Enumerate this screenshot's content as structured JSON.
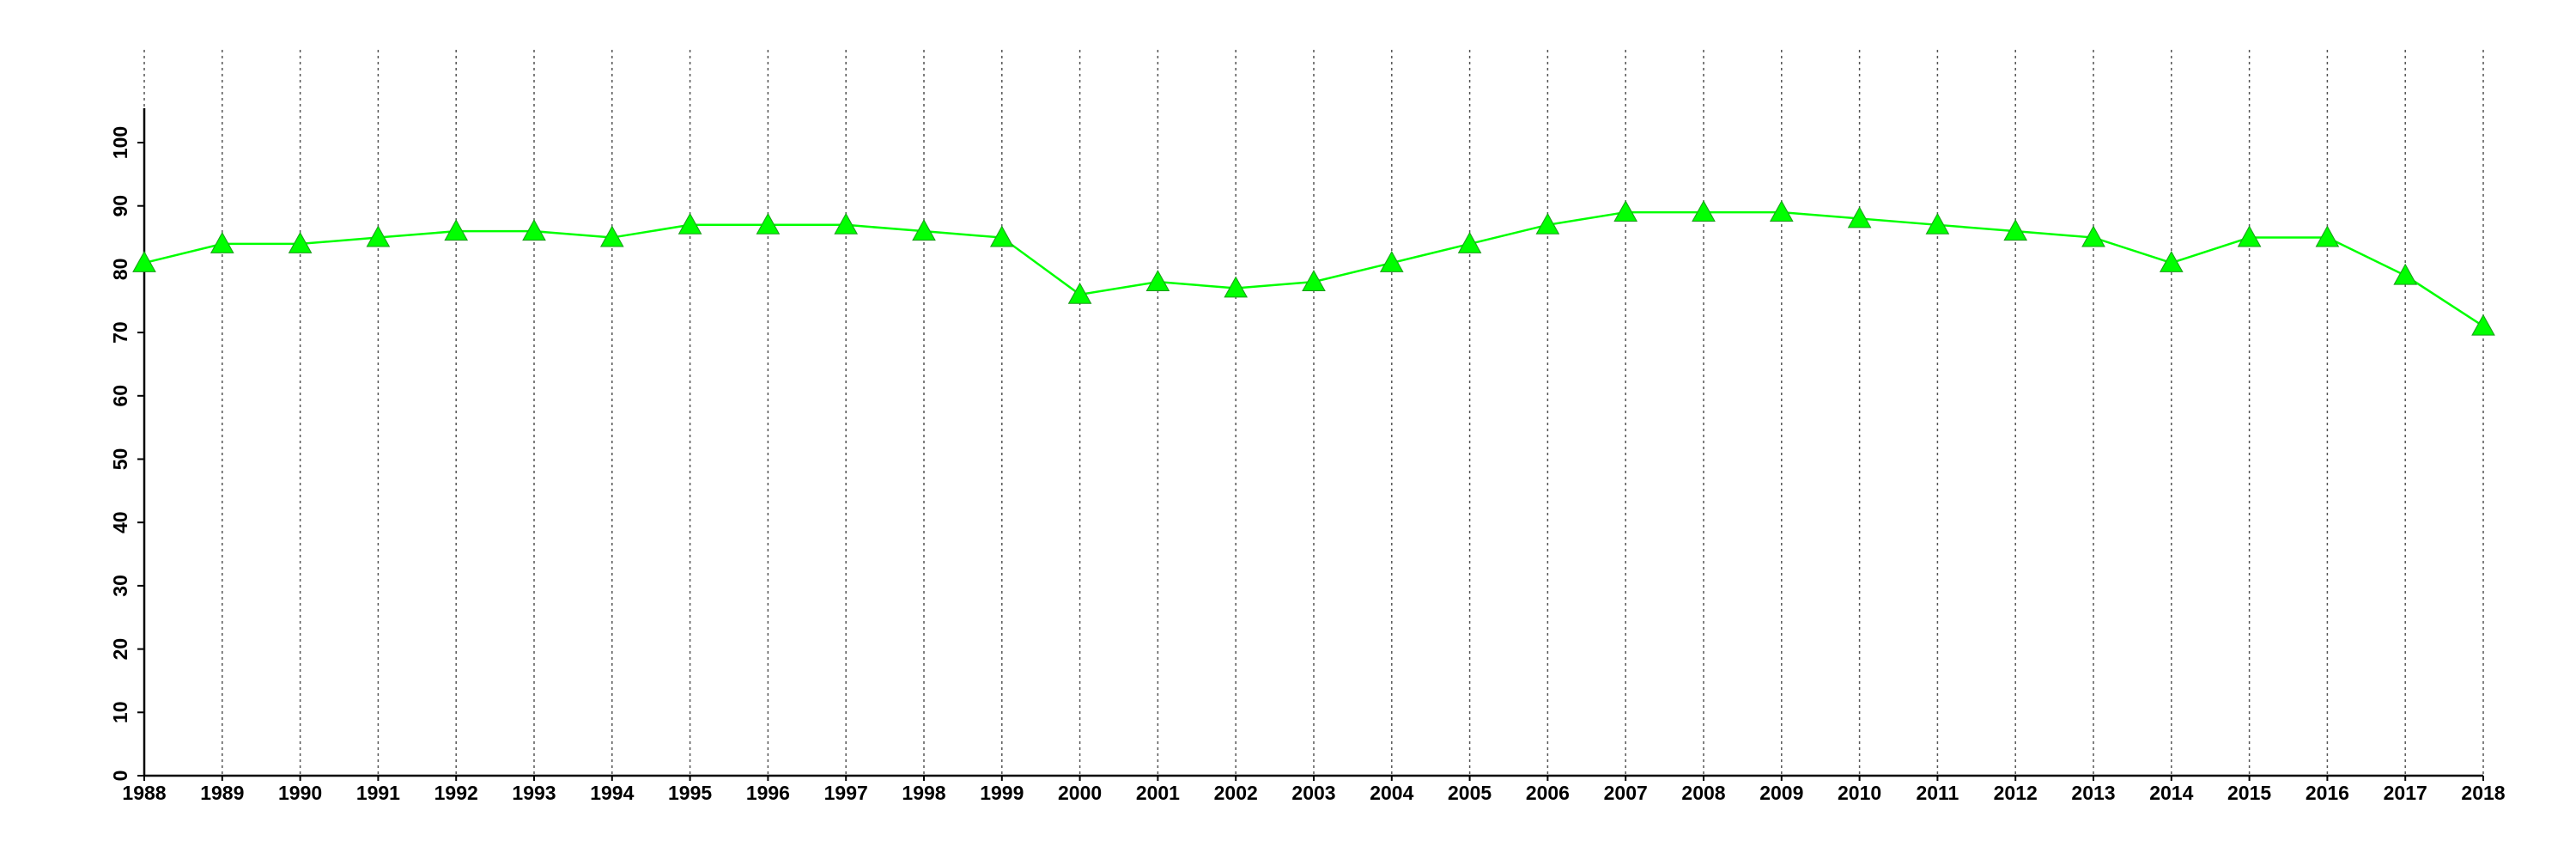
{
  "chart_data": {
    "type": "line",
    "x": [
      1988,
      1989,
      1990,
      1991,
      1992,
      1993,
      1994,
      1995,
      1996,
      1997,
      1998,
      1999,
      2000,
      2001,
      2002,
      2003,
      2004,
      2005,
      2006,
      2007,
      2008,
      2009,
      2010,
      2011,
      2012,
      2013,
      2014,
      2015,
      2016,
      2017,
      2018
    ],
    "values": [
      81,
      84,
      84,
      85,
      86,
      86,
      85,
      87,
      87,
      87,
      86,
      85,
      76,
      78,
      77,
      78,
      81,
      84,
      87,
      89,
      89,
      89,
      88,
      87,
      86,
      85,
      81,
      85,
      85,
      79,
      71
    ],
    "color": "#00ff00",
    "marker": "triangle",
    "xlim": [
      1988,
      2018
    ],
    "xticks": [
      1988,
      1989,
      1990,
      1991,
      1992,
      1993,
      1994,
      1995,
      1996,
      1997,
      1998,
      1999,
      2000,
      2001,
      2002,
      2003,
      2004,
      2005,
      2006,
      2007,
      2008,
      2009,
      2010,
      2011,
      2012,
      2013,
      2014,
      2015,
      2016,
      2017,
      2018
    ],
    "ylim": [
      0,
      100
    ],
    "yticks": [
      0,
      10,
      20,
      30,
      40,
      50,
      60,
      70,
      80,
      90,
      100
    ],
    "grid": "x"
  }
}
